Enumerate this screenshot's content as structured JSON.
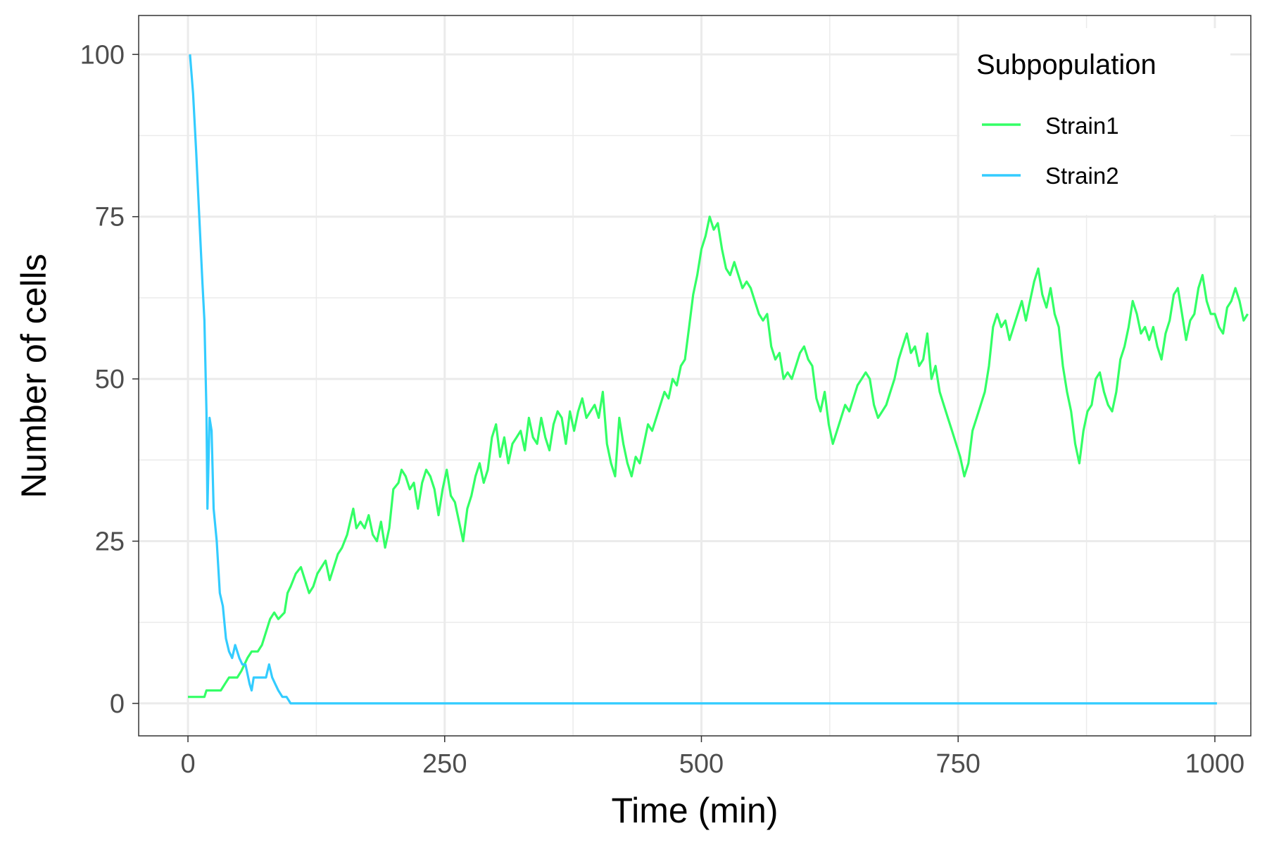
{
  "chart_data": {
    "type": "line",
    "xlabel": "Time (min)",
    "ylabel": "Number of cells",
    "xlim": [
      -48,
      1035
    ],
    "ylim": [
      -5,
      106
    ],
    "x_ticks": [
      0,
      250,
      500,
      750,
      1000
    ],
    "y_ticks": [
      0,
      25,
      50,
      75,
      100
    ],
    "x_tick_labels": [
      "0",
      "250",
      "500",
      "750",
      "1000"
    ],
    "y_tick_labels": [
      "0",
      "25",
      "50",
      "75",
      "100"
    ],
    "grid": true,
    "legend": {
      "title": "Subpopulation",
      "position": "top-right"
    },
    "series": [
      {
        "name": "Strain1",
        "color": "#33ff66",
        "points": [
          [
            0,
            1
          ],
          [
            8,
            1
          ],
          [
            16,
            1
          ],
          [
            18,
            2
          ],
          [
            25,
            2
          ],
          [
            32,
            2
          ],
          [
            36,
            3
          ],
          [
            40,
            4
          ],
          [
            48,
            4
          ],
          [
            52,
            5
          ],
          [
            55,
            6
          ],
          [
            58,
            7
          ],
          [
            62,
            8
          ],
          [
            68,
            8
          ],
          [
            72,
            9
          ],
          [
            76,
            11
          ],
          [
            80,
            13
          ],
          [
            84,
            14
          ],
          [
            88,
            13
          ],
          [
            94,
            14
          ],
          [
            97,
            17
          ],
          [
            100,
            18
          ],
          [
            105,
            20
          ],
          [
            110,
            21
          ],
          [
            114,
            19
          ],
          [
            118,
            17
          ],
          [
            122,
            18
          ],
          [
            126,
            20
          ],
          [
            130,
            21
          ],
          [
            134,
            22
          ],
          [
            138,
            19
          ],
          [
            142,
            21
          ],
          [
            146,
            23
          ],
          [
            150,
            24
          ],
          [
            155,
            26
          ],
          [
            158,
            28
          ],
          [
            161,
            30
          ],
          [
            164,
            27
          ],
          [
            168,
            28
          ],
          [
            172,
            27
          ],
          [
            176,
            29
          ],
          [
            180,
            26
          ],
          [
            184,
            25
          ],
          [
            188,
            28
          ],
          [
            192,
            24
          ],
          [
            196,
            27
          ],
          [
            200,
            33
          ],
          [
            205,
            34
          ],
          [
            208,
            36
          ],
          [
            212,
            35
          ],
          [
            216,
            33
          ],
          [
            220,
            34
          ],
          [
            224,
            30
          ],
          [
            228,
            34
          ],
          [
            232,
            36
          ],
          [
            236,
            35
          ],
          [
            240,
            33
          ],
          [
            244,
            29
          ],
          [
            248,
            33
          ],
          [
            252,
            36
          ],
          [
            256,
            32
          ],
          [
            260,
            31
          ],
          [
            264,
            28
          ],
          [
            268,
            25
          ],
          [
            272,
            30
          ],
          [
            276,
            32
          ],
          [
            280,
            35
          ],
          [
            284,
            37
          ],
          [
            288,
            34
          ],
          [
            292,
            36
          ],
          [
            296,
            41
          ],
          [
            300,
            43
          ],
          [
            304,
            38
          ],
          [
            308,
            41
          ],
          [
            312,
            37
          ],
          [
            316,
            40
          ],
          [
            320,
            41
          ],
          [
            324,
            42
          ],
          [
            328,
            39
          ],
          [
            332,
            44
          ],
          [
            336,
            41
          ],
          [
            340,
            40
          ],
          [
            344,
            44
          ],
          [
            348,
            41
          ],
          [
            352,
            39
          ],
          [
            356,
            43
          ],
          [
            360,
            45
          ],
          [
            364,
            44
          ],
          [
            368,
            40
          ],
          [
            372,
            45
          ],
          [
            376,
            42
          ],
          [
            380,
            45
          ],
          [
            384,
            47
          ],
          [
            388,
            44
          ],
          [
            392,
            45
          ],
          [
            396,
            46
          ],
          [
            400,
            44
          ],
          [
            404,
            48
          ],
          [
            408,
            40
          ],
          [
            412,
            37
          ],
          [
            416,
            35
          ],
          [
            420,
            44
          ],
          [
            424,
            40
          ],
          [
            428,
            37
          ],
          [
            432,
            35
          ],
          [
            436,
            38
          ],
          [
            440,
            37
          ],
          [
            444,
            40
          ],
          [
            448,
            43
          ],
          [
            452,
            42
          ],
          [
            456,
            44
          ],
          [
            460,
            46
          ],
          [
            464,
            48
          ],
          [
            468,
            47
          ],
          [
            472,
            50
          ],
          [
            476,
            49
          ],
          [
            480,
            52
          ],
          [
            484,
            53
          ],
          [
            488,
            58
          ],
          [
            492,
            63
          ],
          [
            496,
            66
          ],
          [
            500,
            70
          ],
          [
            504,
            72
          ],
          [
            508,
            75
          ],
          [
            512,
            73
          ],
          [
            516,
            74
          ],
          [
            520,
            70
          ],
          [
            524,
            67
          ],
          [
            528,
            66
          ],
          [
            532,
            68
          ],
          [
            536,
            66
          ],
          [
            540,
            64
          ],
          [
            544,
            65
          ],
          [
            548,
            64
          ],
          [
            552,
            62
          ],
          [
            556,
            60
          ],
          [
            560,
            59
          ],
          [
            564,
            60
          ],
          [
            568,
            55
          ],
          [
            572,
            53
          ],
          [
            576,
            54
          ],
          [
            580,
            50
          ],
          [
            584,
            51
          ],
          [
            588,
            50
          ],
          [
            592,
            52
          ],
          [
            596,
            54
          ],
          [
            600,
            55
          ],
          [
            604,
            53
          ],
          [
            608,
            52
          ],
          [
            612,
            47
          ],
          [
            616,
            45
          ],
          [
            620,
            48
          ],
          [
            624,
            43
          ],
          [
            628,
            40
          ],
          [
            632,
            42
          ],
          [
            636,
            44
          ],
          [
            640,
            46
          ],
          [
            644,
            45
          ],
          [
            648,
            47
          ],
          [
            652,
            49
          ],
          [
            656,
            50
          ],
          [
            660,
            51
          ],
          [
            664,
            50
          ],
          [
            668,
            46
          ],
          [
            672,
            44
          ],
          [
            676,
            45
          ],
          [
            680,
            46
          ],
          [
            684,
            48
          ],
          [
            688,
            50
          ],
          [
            692,
            53
          ],
          [
            696,
            55
          ],
          [
            700,
            57
          ],
          [
            704,
            54
          ],
          [
            708,
            55
          ],
          [
            712,
            52
          ],
          [
            716,
            53
          ],
          [
            720,
            57
          ],
          [
            724,
            50
          ],
          [
            728,
            52
          ],
          [
            732,
            48
          ],
          [
            736,
            46
          ],
          [
            740,
            44
          ],
          [
            744,
            42
          ],
          [
            748,
            40
          ],
          [
            752,
            38
          ],
          [
            756,
            35
          ],
          [
            760,
            37
          ],
          [
            764,
            42
          ],
          [
            768,
            44
          ],
          [
            772,
            46
          ],
          [
            776,
            48
          ],
          [
            780,
            52
          ],
          [
            784,
            58
          ],
          [
            788,
            60
          ],
          [
            792,
            58
          ],
          [
            796,
            59
          ],
          [
            800,
            56
          ],
          [
            804,
            58
          ],
          [
            808,
            60
          ],
          [
            812,
            62
          ],
          [
            816,
            59
          ],
          [
            820,
            62
          ],
          [
            824,
            65
          ],
          [
            828,
            67
          ],
          [
            832,
            63
          ],
          [
            836,
            61
          ],
          [
            840,
            64
          ],
          [
            844,
            60
          ],
          [
            848,
            58
          ],
          [
            852,
            52
          ],
          [
            856,
            48
          ],
          [
            860,
            45
          ],
          [
            864,
            40
          ],
          [
            868,
            37
          ],
          [
            872,
            42
          ],
          [
            876,
            45
          ],
          [
            880,
            46
          ],
          [
            884,
            50
          ],
          [
            888,
            51
          ],
          [
            892,
            48
          ],
          [
            896,
            46
          ],
          [
            900,
            45
          ],
          [
            904,
            48
          ],
          [
            908,
            53
          ],
          [
            912,
            55
          ],
          [
            916,
            58
          ],
          [
            920,
            62
          ],
          [
            924,
            60
          ],
          [
            928,
            57
          ],
          [
            932,
            58
          ],
          [
            936,
            56
          ],
          [
            940,
            58
          ],
          [
            944,
            55
          ],
          [
            948,
            53
          ],
          [
            952,
            57
          ],
          [
            956,
            59
          ],
          [
            960,
            63
          ],
          [
            964,
            64
          ],
          [
            968,
            60
          ],
          [
            972,
            56
          ],
          [
            976,
            59
          ],
          [
            980,
            60
          ],
          [
            984,
            64
          ],
          [
            988,
            66
          ],
          [
            992,
            62
          ],
          [
            996,
            60
          ],
          [
            1000,
            60
          ],
          [
            1004,
            58
          ],
          [
            1008,
            57
          ],
          [
            1012,
            61
          ],
          [
            1016,
            62
          ],
          [
            1020,
            64
          ],
          [
            1024,
            62
          ],
          [
            1028,
            59
          ],
          [
            1032,
            60
          ]
        ]
      },
      {
        "name": "Strain2",
        "color": "#33ccff",
        "points": [
          [
            2,
            100
          ],
          [
            5,
            94
          ],
          [
            8,
            85
          ],
          [
            11,
            75
          ],
          [
            14,
            65
          ],
          [
            16,
            59
          ],
          [
            18,
            45
          ],
          [
            19,
            30
          ],
          [
            21,
            44
          ],
          [
            23,
            42
          ],
          [
            25,
            30
          ],
          [
            28,
            25
          ],
          [
            31,
            17
          ],
          [
            34,
            15
          ],
          [
            37,
            10
          ],
          [
            40,
            8
          ],
          [
            43,
            7
          ],
          [
            46,
            9
          ],
          [
            50,
            7
          ],
          [
            53,
            6
          ],
          [
            56,
            6
          ],
          [
            60,
            3
          ],
          [
            62,
            2
          ],
          [
            64,
            4
          ],
          [
            68,
            4
          ],
          [
            72,
            4
          ],
          [
            76,
            4
          ],
          [
            79,
            6
          ],
          [
            82,
            4
          ],
          [
            85,
            3
          ],
          [
            88,
            2
          ],
          [
            92,
            1
          ],
          [
            96,
            1
          ],
          [
            100,
            0
          ],
          [
            105,
            0
          ],
          [
            200,
            0
          ],
          [
            400,
            0
          ],
          [
            600,
            0
          ],
          [
            800,
            0
          ],
          [
            1000,
            0
          ],
          [
            1002,
            0
          ]
        ]
      }
    ]
  }
}
